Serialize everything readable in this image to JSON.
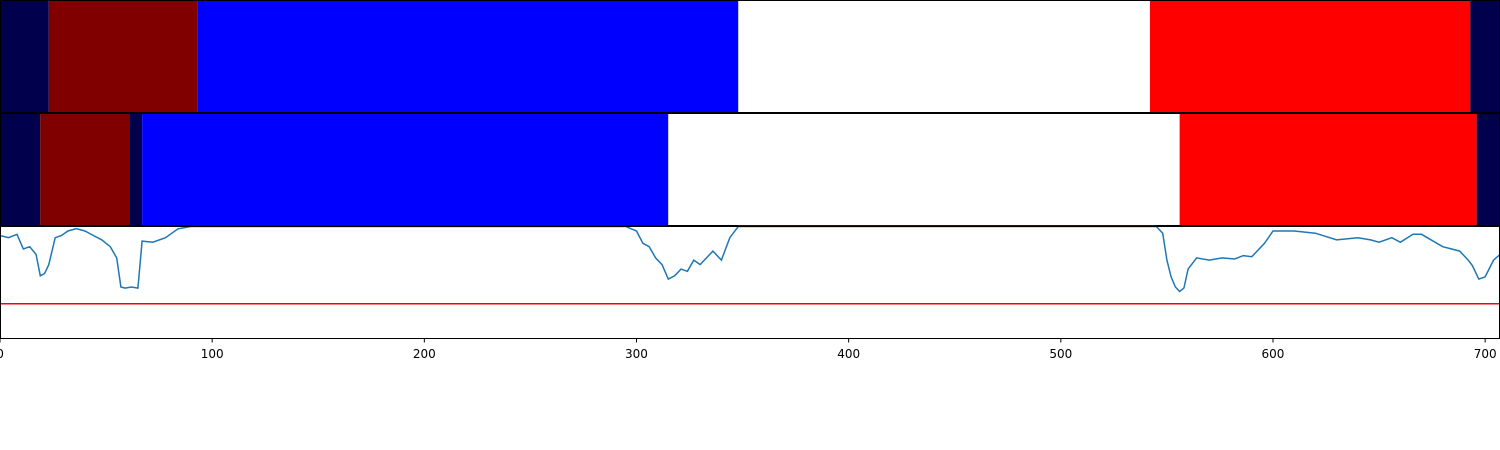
{
  "chart_data": {
    "type": "segmentation",
    "xlim": [
      0,
      707
    ],
    "xticks": [
      0,
      100,
      200,
      300,
      400,
      500,
      600,
      700
    ],
    "ylim": [
      0,
      1
    ],
    "rows": [
      {
        "segments": [
          {
            "start": 0,
            "end": 23,
            "color": "#00004c"
          },
          {
            "start": 23,
            "end": 93,
            "color": "#800000"
          },
          {
            "start": 93,
            "end": 348,
            "color": "#0000ff"
          },
          {
            "start": 348,
            "end": 542,
            "color": "#ffffff"
          },
          {
            "start": 542,
            "end": 693,
            "color": "#ff0000"
          },
          {
            "start": 693,
            "end": 707,
            "color": "#00004c"
          }
        ]
      },
      {
        "segments": [
          {
            "start": 0,
            "end": 19,
            "color": "#00004c"
          },
          {
            "start": 19,
            "end": 61,
            "color": "#800000"
          },
          {
            "start": 61,
            "end": 67,
            "color": "#00004c"
          },
          {
            "start": 67,
            "end": 315,
            "color": "#0000ff"
          },
          {
            "start": 315,
            "end": 556,
            "color": "#ffffff"
          },
          {
            "start": 556,
            "end": 696,
            "color": "#ff0000"
          },
          {
            "start": 696,
            "end": 707,
            "color": "#00004c"
          }
        ]
      }
    ],
    "series": [
      {
        "color": "#1f77b4",
        "x": [
          0,
          4,
          8,
          11,
          14,
          17,
          19,
          21,
          23,
          26,
          29,
          32,
          36,
          40,
          44,
          48,
          52,
          55,
          57,
          59,
          62,
          65,
          67,
          72,
          78,
          84,
          90,
          295,
          300,
          303,
          306,
          309,
          312,
          315,
          318,
          321,
          324,
          327,
          330,
          333,
          336,
          340,
          344,
          348,
          545,
          548,
          550,
          552,
          554,
          556,
          558,
          560,
          564,
          570,
          576,
          582,
          586,
          590,
          596,
          600,
          610,
          620,
          630,
          640,
          646,
          650,
          656,
          660,
          666,
          670,
          680,
          684,
          688,
          692,
          694,
          697,
          700,
          704,
          707
        ],
        "values": [
          0.92,
          0.9,
          0.93,
          0.8,
          0.82,
          0.75,
          0.56,
          0.58,
          0.66,
          0.9,
          0.92,
          0.96,
          0.98,
          0.96,
          0.92,
          0.88,
          0.82,
          0.72,
          0.46,
          0.45,
          0.46,
          0.45,
          0.87,
          0.86,
          0.9,
          0.98,
          1.0,
          1.0,
          0.96,
          0.85,
          0.82,
          0.72,
          0.66,
          0.53,
          0.56,
          0.62,
          0.6,
          0.7,
          0.66,
          0.72,
          0.78,
          0.7,
          0.9,
          1.0,
          1.0,
          0.94,
          0.7,
          0.55,
          0.46,
          0.42,
          0.45,
          0.62,
          0.72,
          0.7,
          0.72,
          0.71,
          0.74,
          0.73,
          0.85,
          0.96,
          0.96,
          0.94,
          0.88,
          0.9,
          0.88,
          0.86,
          0.9,
          0.86,
          0.93,
          0.93,
          0.82,
          0.8,
          0.78,
          0.7,
          0.65,
          0.53,
          0.55,
          0.7,
          0.75
        ]
      }
    ],
    "threshold": {
      "value": 0.31,
      "color": "#ff0000"
    }
  }
}
